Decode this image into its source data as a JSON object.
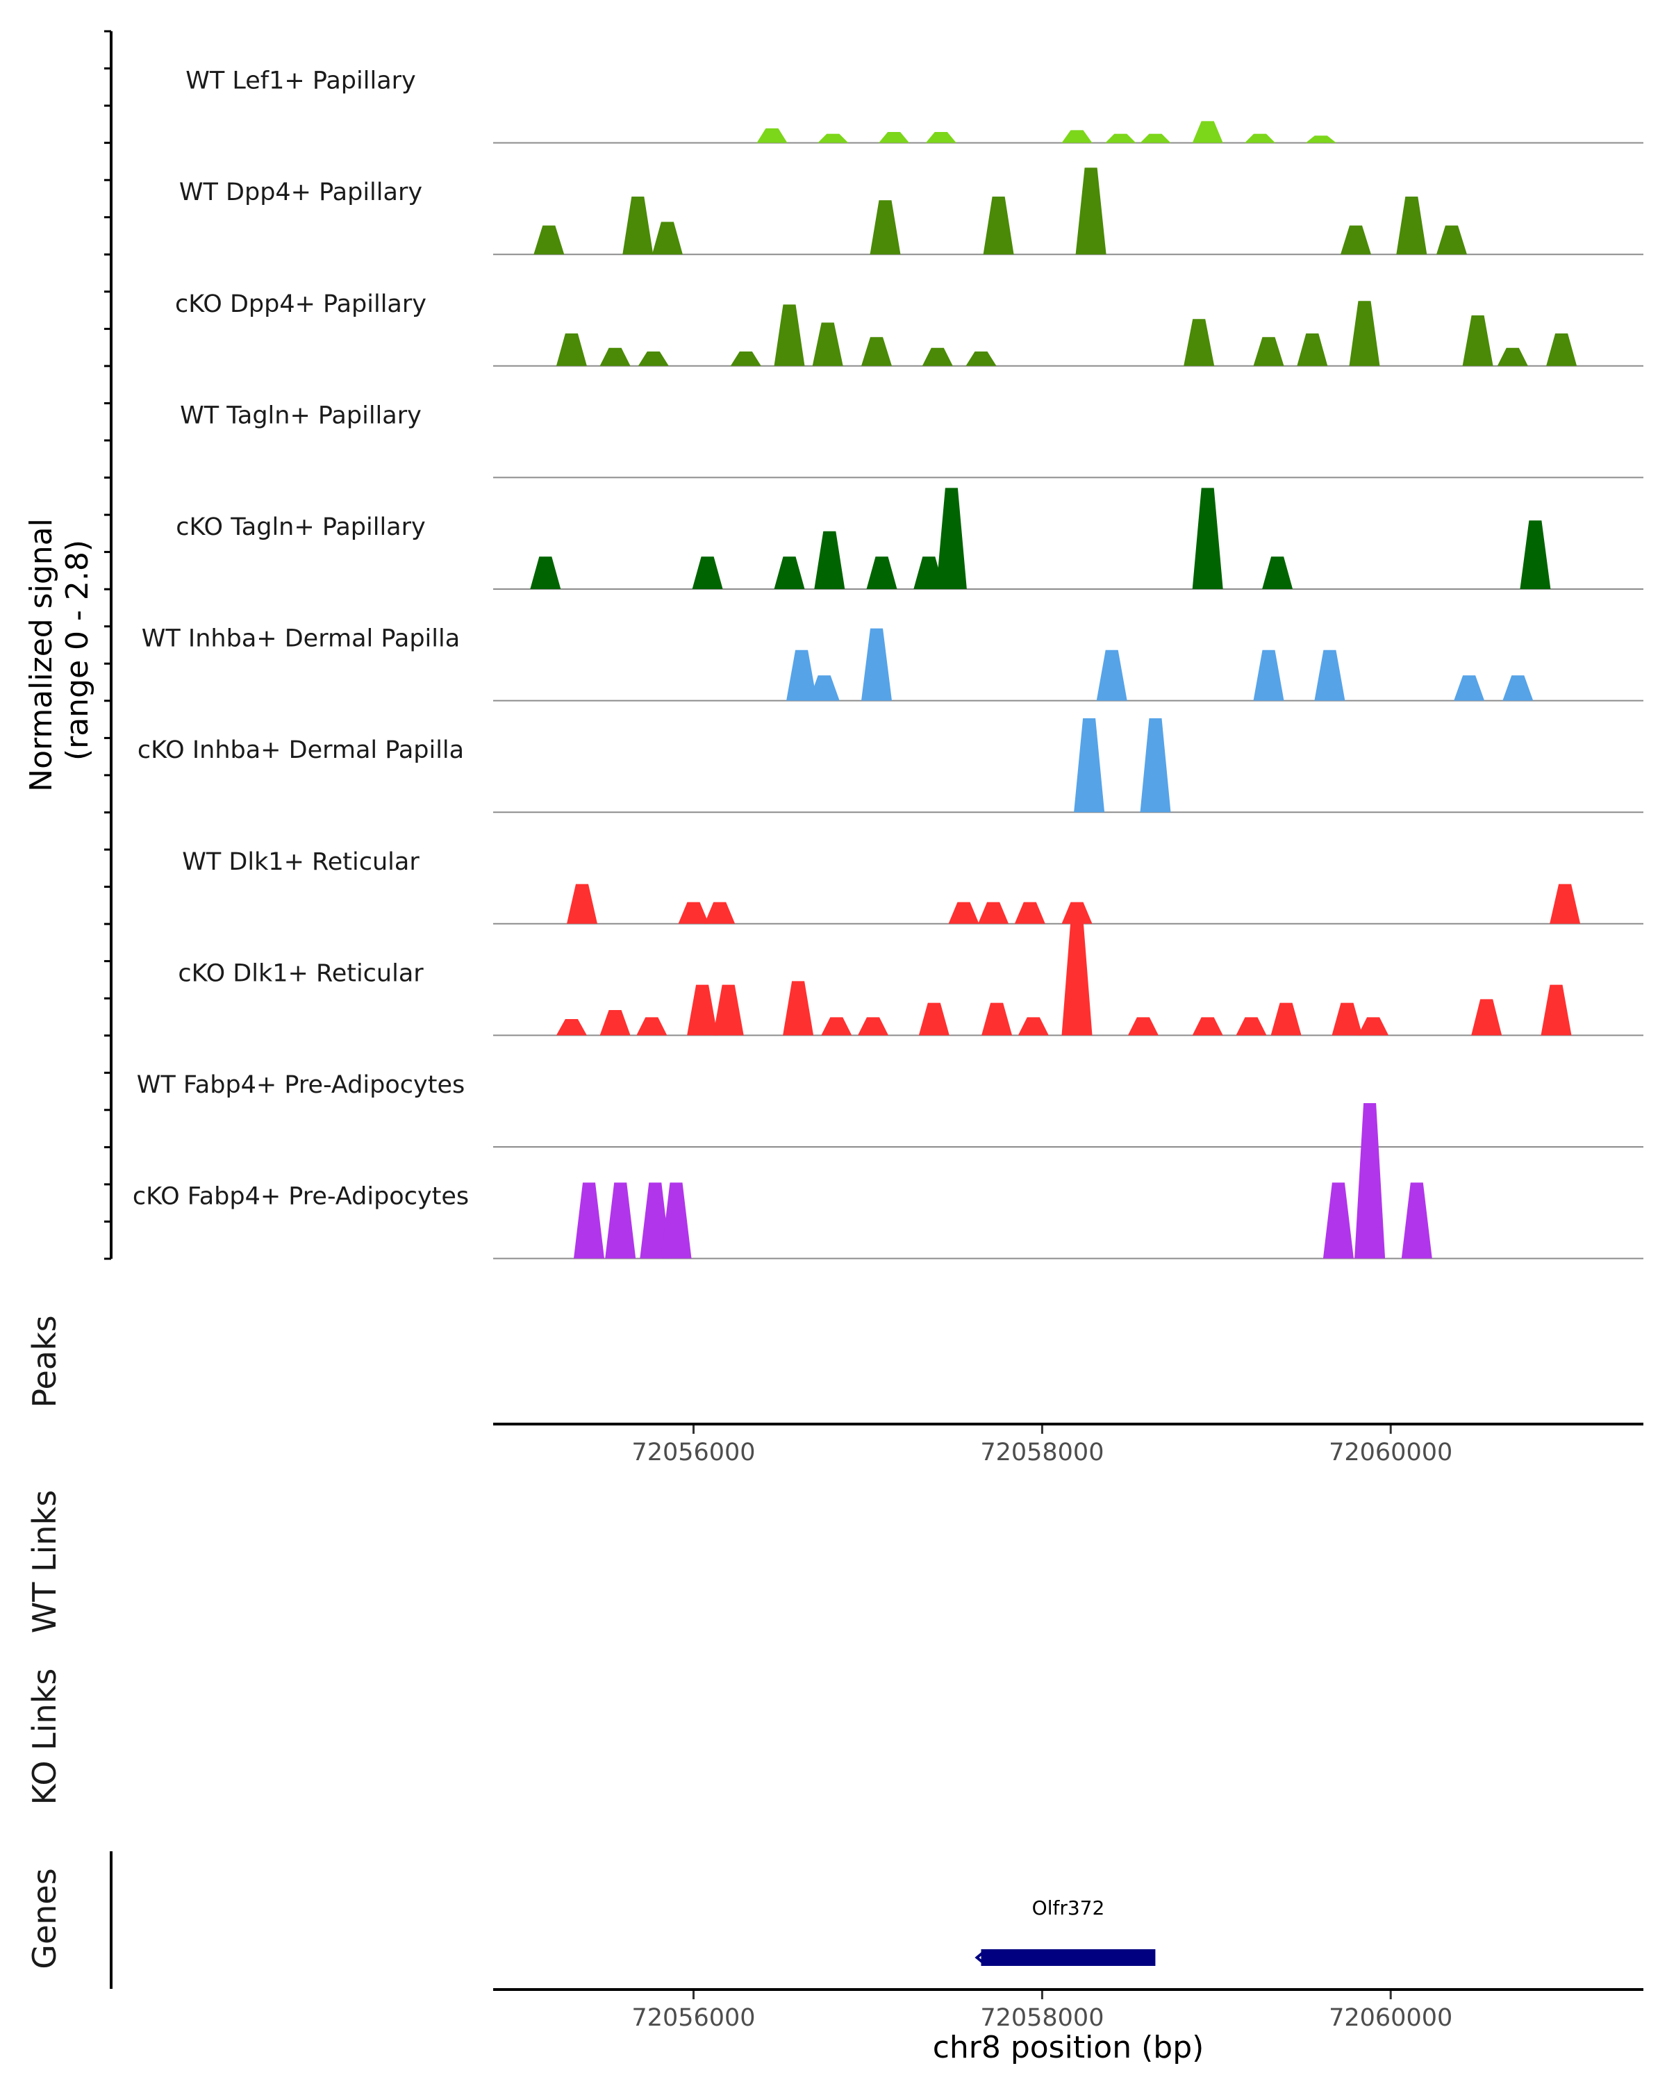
{
  "chart_data": {
    "type": "area",
    "title": "",
    "xlabel": "chr8 position (bp)",
    "ylabel": "Normalized signal\n(range 0 - 2.8)",
    "ylabel_lines": [
      "Normalized signal",
      "(range 0 - 2.8)"
    ],
    "ylim": [
      0,
      2.8
    ],
    "xlim": [
      72054850,
      72061450
    ],
    "x_ticks": [
      72056000,
      72058000,
      72060000
    ],
    "x_tick_labels": [
      "72056000",
      "72058000",
      "72060000"
    ],
    "panel_labels": {
      "peaks": "Peaks",
      "wt_links": "WT Links",
      "ko_links": "KO Links",
      "genes": "Genes"
    },
    "series": [
      {
        "name": "WT Lef1+ Papillary",
        "color": "#7cd61a",
        "peaks": [
          [
            72056450,
            0.4
          ],
          [
            72056800,
            0.25
          ],
          [
            72057150,
            0.3
          ],
          [
            72057420,
            0.3
          ],
          [
            72058200,
            0.35
          ],
          [
            72058450,
            0.25
          ],
          [
            72058650,
            0.25
          ],
          [
            72058950,
            0.6
          ],
          [
            72059250,
            0.25
          ],
          [
            72059600,
            0.2
          ]
        ]
      },
      {
        "name": "WT Dpp4+ Papillary",
        "color": "#4a8a06",
        "peaks": [
          [
            72055170,
            0.8
          ],
          [
            72055680,
            1.6
          ],
          [
            72055850,
            0.9
          ],
          [
            72057100,
            1.5
          ],
          [
            72057750,
            1.6
          ],
          [
            72058280,
            2.4
          ],
          [
            72059800,
            0.8
          ],
          [
            72060120,
            1.6
          ],
          [
            72060350,
            0.8
          ]
        ]
      },
      {
        "name": "cKO Dpp4+ Papillary",
        "color": "#4a8a06",
        "peaks": [
          [
            72055300,
            0.9
          ],
          [
            72055550,
            0.5
          ],
          [
            72055770,
            0.4
          ],
          [
            72056300,
            0.4
          ],
          [
            72056550,
            1.7
          ],
          [
            72056770,
            1.2
          ],
          [
            72057050,
            0.8
          ],
          [
            72057400,
            0.5
          ],
          [
            72057650,
            0.4
          ],
          [
            72058900,
            1.3
          ],
          [
            72059300,
            0.8
          ],
          [
            72059550,
            0.9
          ],
          [
            72059850,
            1.8
          ],
          [
            72060500,
            1.4
          ],
          [
            72060700,
            0.5
          ],
          [
            72060980,
            0.9
          ]
        ]
      },
      {
        "name": "WT Tagln+ Papillary",
        "color": "#006400",
        "peaks": []
      },
      {
        "name": "cKO Tagln+ Papillary",
        "color": "#006400",
        "peaks": [
          [
            72055150,
            0.9
          ],
          [
            72056080,
            0.9
          ],
          [
            72056550,
            0.9
          ],
          [
            72056780,
            1.6
          ],
          [
            72057080,
            0.9
          ],
          [
            72057350,
            0.9
          ],
          [
            72057480,
            2.8
          ],
          [
            72058950,
            2.8
          ],
          [
            72059350,
            0.9
          ],
          [
            72060830,
            1.9
          ]
        ]
      },
      {
        "name": "WT Inhba+ Dermal Papilla",
        "color": "#56a3e8",
        "peaks": [
          [
            72056620,
            1.4
          ],
          [
            72056750,
            0.7
          ],
          [
            72057050,
            2.0
          ],
          [
            72058400,
            1.4
          ],
          [
            72059300,
            1.4
          ],
          [
            72059650,
            1.4
          ],
          [
            72060450,
            0.7
          ],
          [
            72060730,
            0.7
          ]
        ]
      },
      {
        "name": "cKO Inhba+ Dermal Papilla",
        "color": "#56a3e8",
        "peaks": [
          [
            72058270,
            2.6
          ],
          [
            72058650,
            2.6
          ]
        ]
      },
      {
        "name": "WT Dlk1+ Reticular",
        "color": "#ff3030",
        "peaks": [
          [
            72055360,
            1.1
          ],
          [
            72056000,
            0.6
          ],
          [
            72056150,
            0.6
          ],
          [
            72057550,
            0.6
          ],
          [
            72057720,
            0.6
          ],
          [
            72057930,
            0.6
          ],
          [
            72058200,
            0.6
          ],
          [
            72061000,
            1.1
          ]
        ]
      },
      {
        "name": "cKO Dlk1+ Reticular",
        "color": "#ff3030",
        "peaks": [
          [
            72055300,
            0.45
          ],
          [
            72055550,
            0.7
          ],
          [
            72055760,
            0.5
          ],
          [
            72056050,
            1.4
          ],
          [
            72056200,
            1.4
          ],
          [
            72056600,
            1.5
          ],
          [
            72056820,
            0.5
          ],
          [
            72057030,
            0.5
          ],
          [
            72057380,
            0.9
          ],
          [
            72057740,
            0.9
          ],
          [
            72057950,
            0.5
          ],
          [
            72058200,
            3.2
          ],
          [
            72058580,
            0.5
          ],
          [
            72058950,
            0.5
          ],
          [
            72059200,
            0.5
          ],
          [
            72059400,
            0.9
          ],
          [
            72059750,
            0.9
          ],
          [
            72059900,
            0.5
          ],
          [
            72060550,
            1.0
          ],
          [
            72060950,
            1.4
          ]
        ]
      },
      {
        "name": "WT Fabp4+ Pre-Adipocytes",
        "color": "#b135eb",
        "peaks": []
      },
      {
        "name": "cKO Fabp4+ Pre-Adipocytes",
        "color": "#b135eb",
        "peaks": [
          [
            72055400,
            2.1
          ],
          [
            72055580,
            2.1
          ],
          [
            72055780,
            2.1
          ],
          [
            72055900,
            2.1
          ],
          [
            72059700,
            2.1
          ],
          [
            72059880,
            4.3
          ],
          [
            72060150,
            2.1
          ]
        ]
      }
    ],
    "genes": [
      {
        "name": "Olfr372",
        "start": 72057650,
        "end": 72058650,
        "strand": "-",
        "color": "#000080"
      }
    ]
  }
}
